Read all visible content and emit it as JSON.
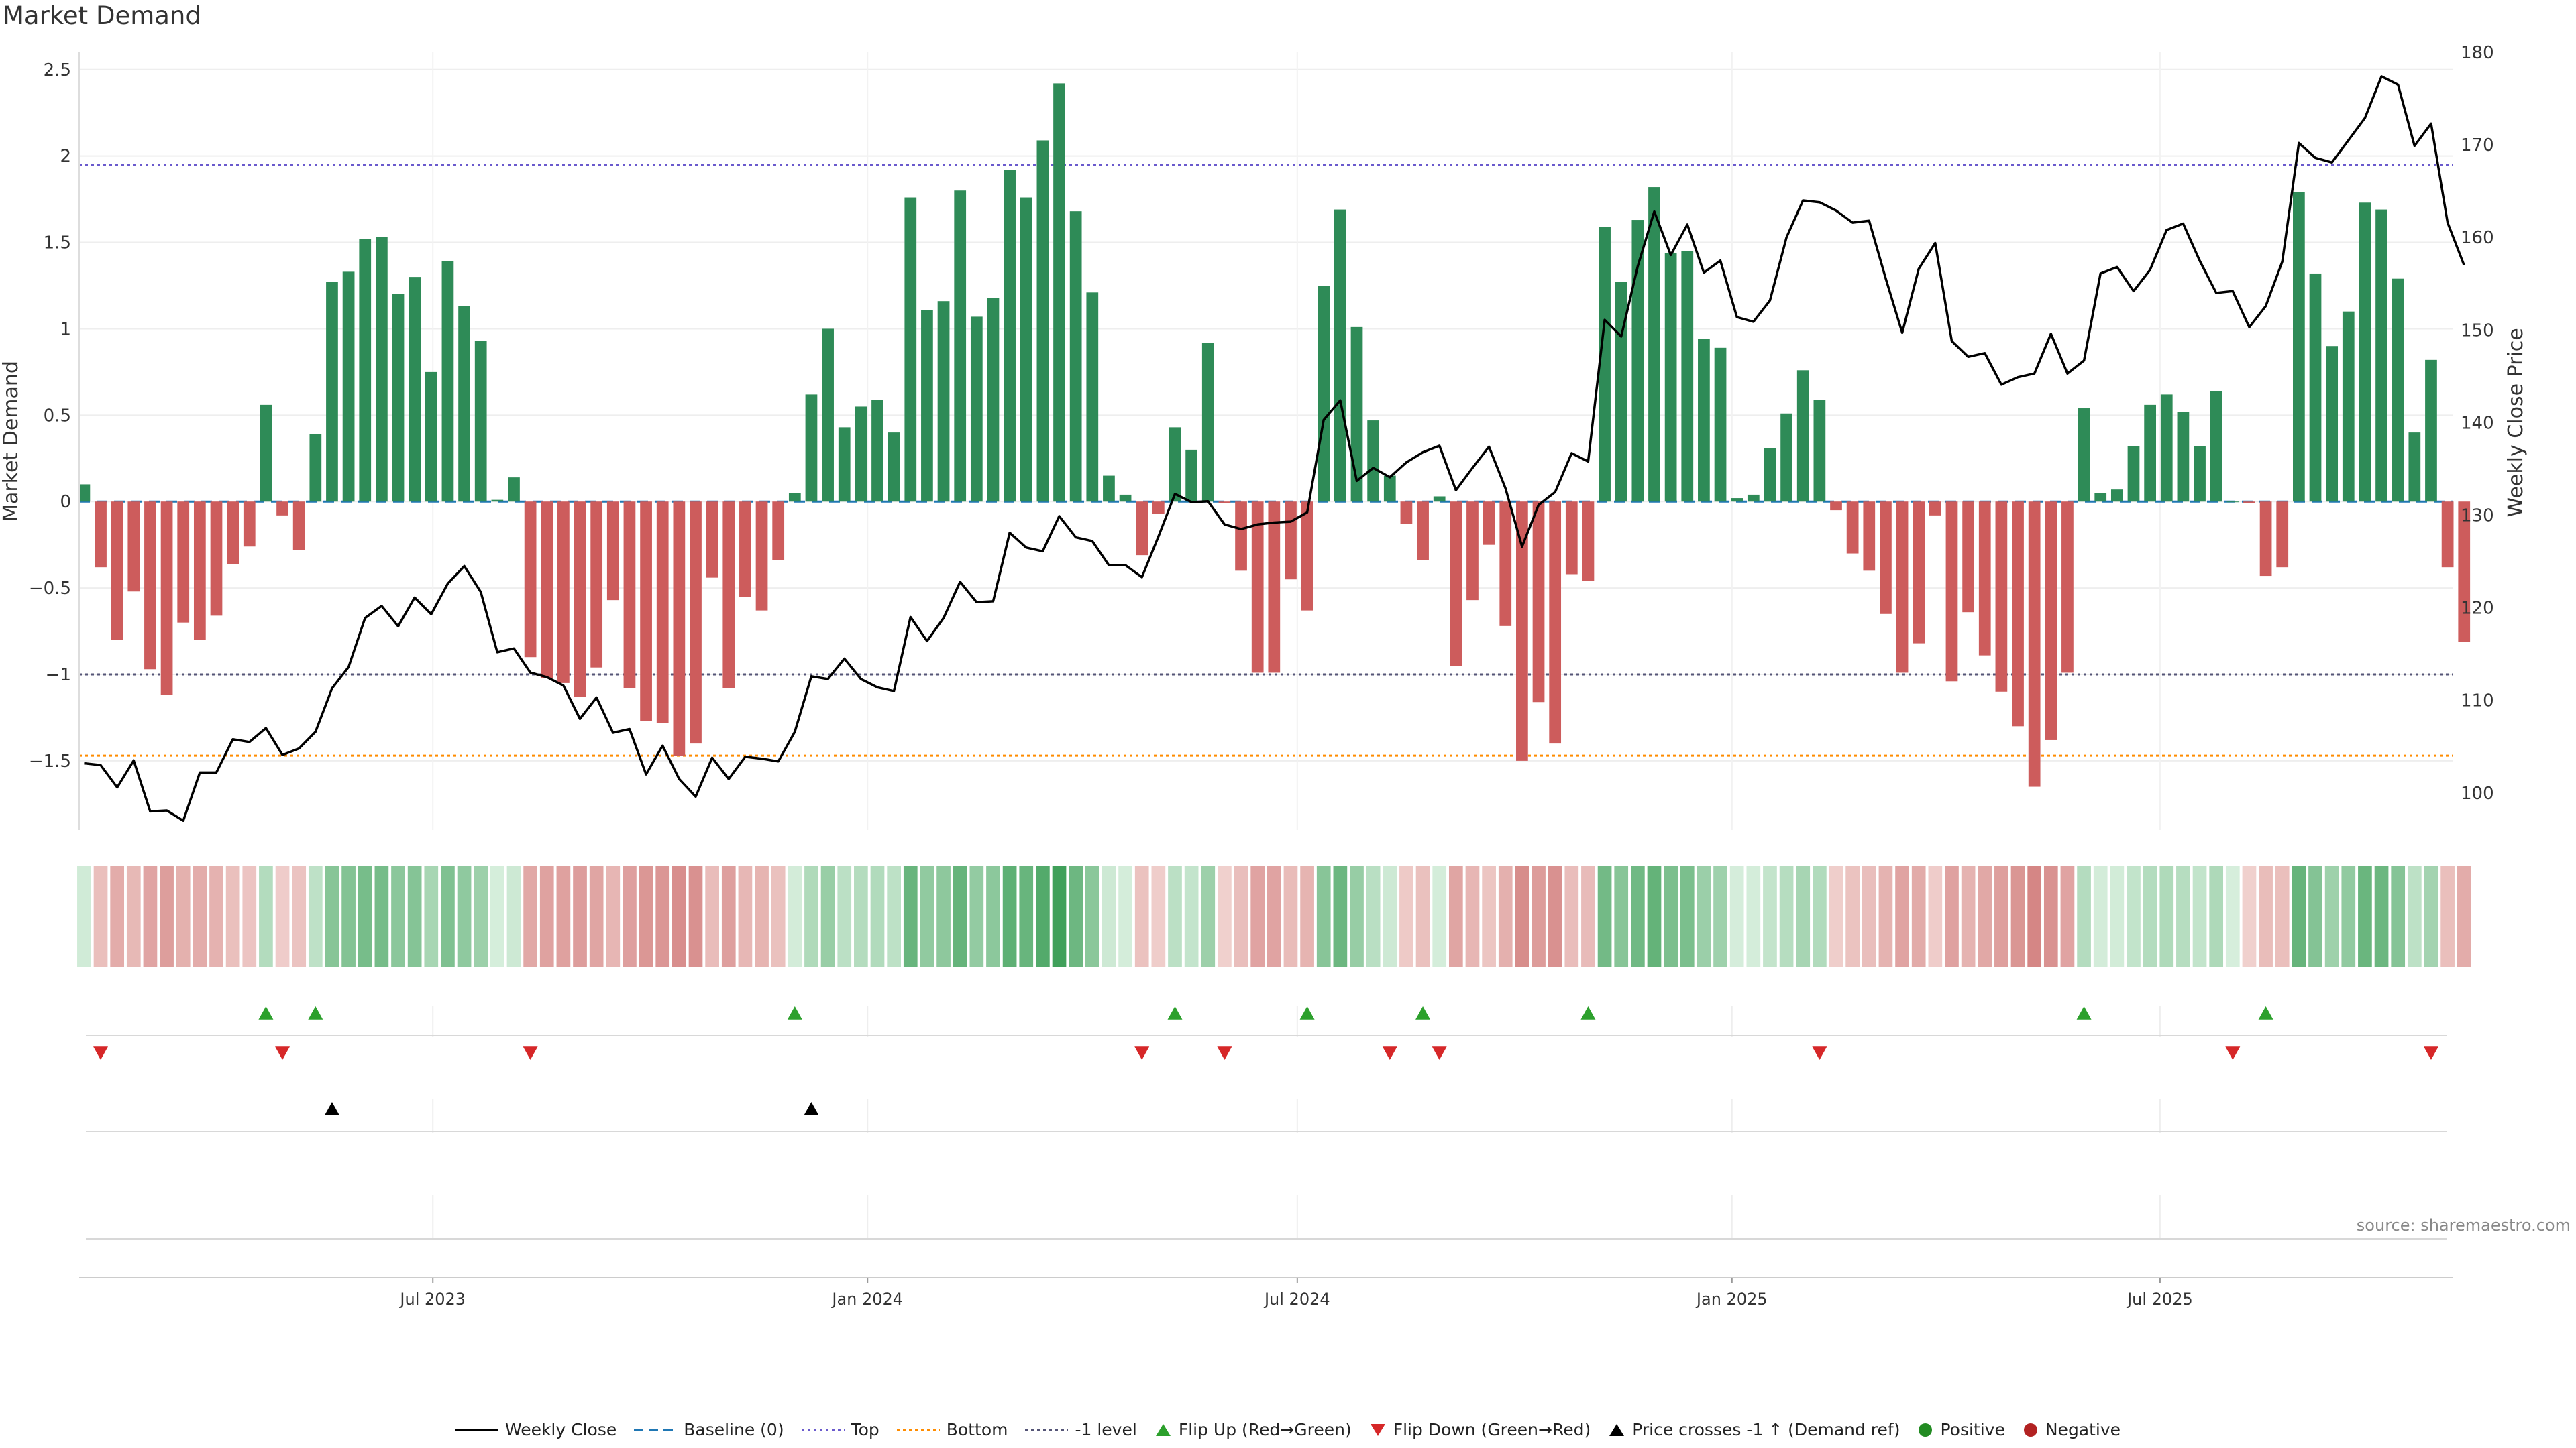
{
  "title": "Market Demand",
  "source": "source: sharemaestro.com",
  "colors": {
    "positive": "#2e8b57",
    "negative": "#cd5c5c",
    "top_line": "#6a5acd",
    "bottom_line": "#ff8c00",
    "level_line": "#555577",
    "baseline": "#1f77b4",
    "price": "#000000",
    "flip_up": "#2ca02c",
    "flip_down": "#d62728"
  },
  "legend": [
    {
      "key": "weekly_close",
      "label": "Weekly Close",
      "icon": "solid-line"
    },
    {
      "key": "baseline",
      "label": "Baseline (0)",
      "icon": "dashed-line"
    },
    {
      "key": "top",
      "label": "Top",
      "icon": "dotted-line"
    },
    {
      "key": "bottom",
      "label": "Bottom",
      "icon": "dotted-line"
    },
    {
      "key": "minus1",
      "label": "-1 level",
      "icon": "dotted-line"
    },
    {
      "key": "flip_up",
      "label": "Flip Up (Red→Green)",
      "icon": "triangle-up"
    },
    {
      "key": "flip_down",
      "label": "Flip Down (Green→Red)",
      "icon": "triangle-down"
    },
    {
      "key": "price_cross",
      "label": "Price crosses -1 ↑ (Demand ref)",
      "icon": "triangle-up"
    },
    {
      "key": "positive",
      "label": "Positive",
      "icon": "dot"
    },
    {
      "key": "negative",
      "label": "Negative",
      "icon": "dot"
    }
  ],
  "chart_data": {
    "type": "bar",
    "title": "Market Demand",
    "ylabel": "Market Demand",
    "y2label": "Weekly Close Price",
    "ylim": [
      -1.9,
      2.6
    ],
    "y2lim": [
      96,
      180
    ],
    "yticks": [
      -1.5,
      -1,
      -0.5,
      0,
      0.5,
      1,
      1.5,
      2,
      2.5
    ],
    "ytick_labels": [
      "−1.5",
      "−1",
      "−0.5",
      "0",
      "0.5",
      "1",
      "1.5",
      "2",
      "2.5"
    ],
    "y2ticks": [
      100,
      110,
      120,
      130,
      140,
      150,
      160,
      170,
      180
    ],
    "x_start": "2023-02-12",
    "x_step_weeks": 1,
    "xlim_weeks": [
      -0.3,
      143.3
    ],
    "xticks": [
      {
        "label": "Jul 2023",
        "week": 21.1
      },
      {
        "label": "Jan 2024",
        "week": 47.4
      },
      {
        "label": "Jul 2024",
        "week": 73.4
      },
      {
        "label": "Jan 2025",
        "week": 99.7
      },
      {
        "label": "Jul 2025",
        "week": 125.6
      }
    ],
    "reference_lines": {
      "top": 1.95,
      "bottom": -1.47,
      "minus1_level": -1.0,
      "baseline": 0
    },
    "demand": [
      0.1,
      -0.38,
      -0.8,
      -0.52,
      -0.97,
      -1.12,
      -0.7,
      -0.8,
      -0.66,
      -0.36,
      -0.26,
      0.56,
      -0.08,
      -0.28,
      0.39,
      1.27,
      1.33,
      1.52,
      1.53,
      1.2,
      1.3,
      0.75,
      1.39,
      1.13,
      0.93,
      0.01,
      0.14,
      -0.9,
      -1.02,
      -1.05,
      -1.13,
      -0.96,
      -0.57,
      -1.08,
      -1.27,
      -1.28,
      -1.47,
      -1.4,
      -0.44,
      -1.08,
      -0.55,
      -0.63,
      -0.34,
      0.05,
      0.62,
      1.0,
      0.43,
      0.55,
      0.59,
      0.4,
      1.76,
      1.11,
      1.16,
      1.8,
      1.07,
      1.18,
      1.92,
      1.76,
      2.09,
      2.42,
      1.68,
      1.21,
      0.15,
      0.04,
      -0.31,
      -0.07,
      0.43,
      0.3,
      0.92,
      -0.01,
      -0.4,
      -0.99,
      -0.99,
      -0.45,
      -0.63,
      1.25,
      1.69,
      1.01,
      0.47,
      0.15,
      -0.13,
      -0.34,
      0.03,
      -0.95,
      -0.57,
      -0.25,
      -0.72,
      -1.5,
      -1.16,
      -1.4,
      -0.42,
      -0.46,
      1.59,
      1.27,
      1.63,
      1.82,
      1.44,
      1.45,
      0.94,
      0.89,
      0.02,
      0.04,
      0.31,
      0.51,
      0.76,
      0.59,
      -0.05,
      -0.3,
      -0.4,
      -0.65,
      -0.99,
      -0.82,
      -0.08,
      -1.04,
      -0.64,
      -0.89,
      -1.1,
      -1.3,
      -1.65,
      -1.38,
      -0.99,
      0.54,
      0.05,
      0.07,
      0.32,
      0.56,
      0.62,
      0.52,
      0.32,
      0.64,
      0.0,
      -0.01,
      -0.43,
      -0.38,
      1.79,
      1.32,
      0.9,
      1.1,
      1.73,
      1.69,
      1.29,
      0.4,
      0.82,
      -0.38,
      -0.81
    ],
    "weekly_close": [
      103.2,
      103.0,
      100.6,
      103.5,
      98.0,
      98.1,
      97.0,
      102.2,
      102.2,
      105.8,
      105.5,
      107.0,
      104.1,
      104.8,
      106.6,
      111.3,
      113.6,
      118.9,
      120.2,
      118.0,
      121.1,
      119.3,
      122.6,
      124.5,
      121.7,
      115.2,
      115.6,
      113.0,
      112.5,
      111.6,
      108.0,
      110.3,
      106.5,
      106.9,
      102.0,
      105.1,
      101.5,
      99.6,
      103.8,
      101.5,
      103.9,
      103.7,
      103.4,
      106.6,
      112.6,
      112.3,
      114.5,
      112.3,
      111.4,
      111.0,
      119.0,
      116.4,
      118.9,
      122.8,
      120.6,
      120.7,
      128.1,
      126.5,
      126.1,
      129.9,
      127.6,
      127.2,
      124.6,
      124.6,
      123.3,
      127.7,
      132.3,
      131.4,
      131.5,
      129.0,
      128.5,
      129.0,
      129.2,
      129.3,
      130.3,
      140.3,
      142.4,
      133.7,
      135.1,
      134.1,
      135.7,
      136.8,
      137.5,
      132.7,
      135.1,
      137.4,
      132.9,
      126.6,
      131.1,
      132.5,
      136.7,
      135.8,
      151.1,
      149.3,
      156.9,
      162.8,
      158.1,
      161.4,
      156.2,
      157.5,
      151.4,
      150.9,
      153.2,
      160.0,
      164.0,
      163.8,
      162.9,
      161.6,
      161.8,
      155.6,
      149.7,
      156.6,
      159.4,
      148.8,
      147.1,
      147.5,
      144.1,
      144.9,
      145.3,
      149.6,
      145.3,
      146.7,
      156.1,
      156.8,
      154.2,
      156.5,
      160.8,
      161.5,
      157.5,
      154.0,
      154.2,
      150.3,
      152.6,
      157.4,
      170.2,
      168.6,
      168.1,
      170.5,
      172.9,
      177.4,
      176.5,
      169.9,
      172.3,
      161.6,
      157.0
    ],
    "heat_strip": "color per week derived from demand value",
    "flip_up_weeks": [
      11,
      14,
      43,
      66,
      74,
      81,
      91,
      121,
      132
    ],
    "flip_down_weeks": [
      1,
      12,
      27,
      64,
      69,
      79,
      82,
      105,
      130,
      142
    ],
    "price_cross_weeks": [
      15,
      44
    ]
  }
}
